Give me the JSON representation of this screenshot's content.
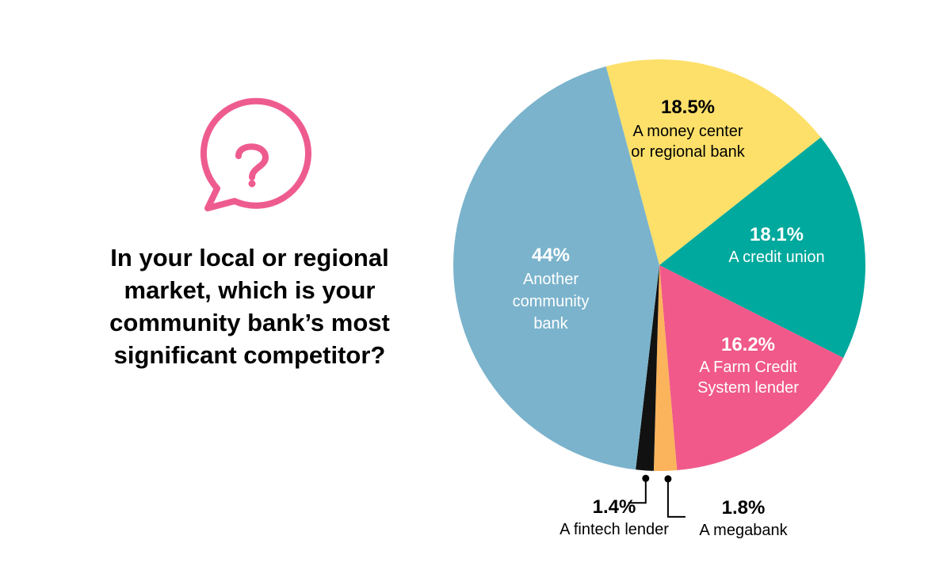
{
  "question": {
    "lines": [
      "In your local or regional",
      "market, which is your",
      "community bank’s most",
      "significant competitor?"
    ],
    "icon": "question-speech-bubble-icon",
    "icon_color": "#ee5c8f"
  },
  "chart_data": {
    "type": "pie",
    "slices": [
      {
        "pct": "18.5%",
        "value": 18.5,
        "label_lines": [
          "A money center",
          "or regional bank"
        ],
        "color": "#fde06a",
        "text_color": "#000000",
        "slug": "money-center"
      },
      {
        "pct": "18.1%",
        "value": 18.1,
        "label_lines": [
          "A credit union"
        ],
        "color": "#00a99d",
        "text_color": "#ffffff",
        "slug": "credit-union"
      },
      {
        "pct": "16.2%",
        "value": 16.2,
        "label_lines": [
          "A Farm Credit",
          "System lender"
        ],
        "color": "#f0598a",
        "text_color": "#ffffff",
        "slug": "farm-credit"
      },
      {
        "pct": "1.8%",
        "value": 1.8,
        "label_lines": [
          "A megabank"
        ],
        "color": "#fcb45c",
        "text_color": "#000000",
        "slug": "megabank"
      },
      {
        "pct": "1.4%",
        "value": 1.4,
        "label_lines": [
          "A fintech lender"
        ],
        "color": "#111111",
        "text_color": "#000000",
        "slug": "fintech"
      },
      {
        "pct": "44%",
        "value": 44,
        "label_lines": [
          "Another",
          "community",
          "bank"
        ],
        "color": "#7bb3cc",
        "text_color": "#ffffff",
        "slug": "community-bank"
      }
    ],
    "start_angle_deg": -15
  }
}
